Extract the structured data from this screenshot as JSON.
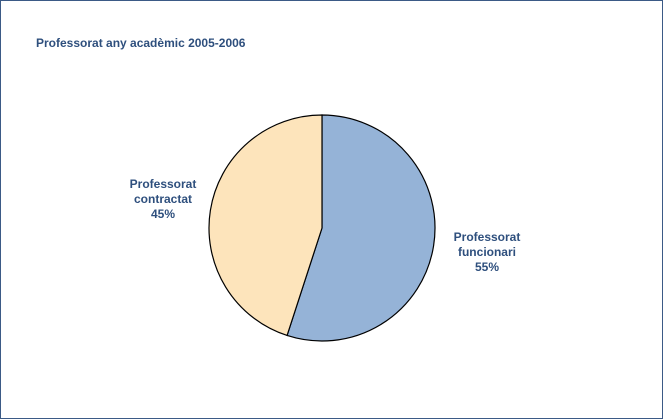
{
  "chart_data": {
    "type": "pie",
    "title": "Professorat any acadèmic 2005-2006",
    "slices": [
      {
        "label_lines": [
          "Professorat",
          "funcionari"
        ],
        "value": 55,
        "value_label": "55%",
        "color": "#95b3d7"
      },
      {
        "label_lines": [
          "Professorat",
          "contractat"
        ],
        "value": 45,
        "value_label": "45%",
        "color": "#fde4bb"
      }
    ],
    "start_angle": "12 o'clock",
    "direction": "clockwise",
    "outline_color": "#000000",
    "title_color": "#2e4f7d",
    "legend": "none"
  }
}
